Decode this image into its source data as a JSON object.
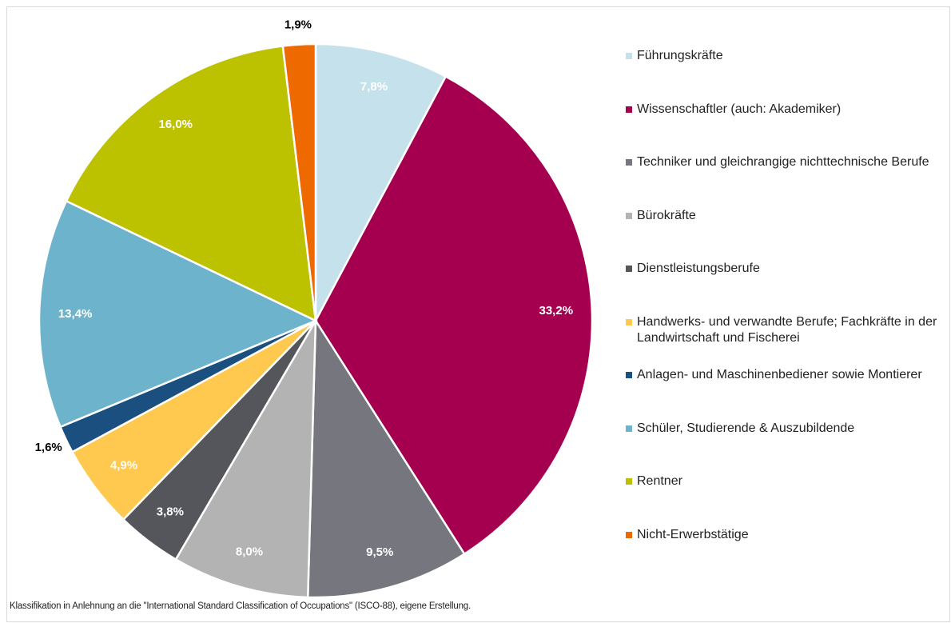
{
  "chart_data": {
    "type": "pie",
    "categories": [
      "Führungskräfte",
      "Wissenschaftler (auch: Akademiker)",
      "Techniker und gleichrangige nichttechnische Berufe",
      "Bürokräfte",
      "Dienstleistungsberufe",
      "Handwerks- und verwandte Berufe; Fachkräfte in der Landwirtschaft und Fischerei",
      "Anlagen- und Maschinenbediener sowie Montierer",
      "Schüler, Studierende & Auszubildende",
      "Rentner",
      "Nicht-Erwerbstätige"
    ],
    "values": [
      7.8,
      33.2,
      9.5,
      8.0,
      3.8,
      4.9,
      1.6,
      13.4,
      16.0,
      1.9
    ],
    "value_labels": [
      "7,8%",
      "33,2%",
      "9,5%",
      "8,0%",
      "3,8%",
      "4,9%",
      "1,6%",
      "13,4%",
      "16,0%",
      "1,9%"
    ],
    "colors": [
      "#c5e1ec",
      "#a50050",
      "#76767f",
      "#b3b3b3",
      "#55555c",
      "#ffc94f",
      "#1a4f7f",
      "#6db3cc",
      "#bcc200",
      "#ee6a00"
    ],
    "legend": "right",
    "note": "Klassifikation in Anlehnung an die \"International Standard Classification of Occupations\" (ISCO-88), eigene Erstellung."
  }
}
